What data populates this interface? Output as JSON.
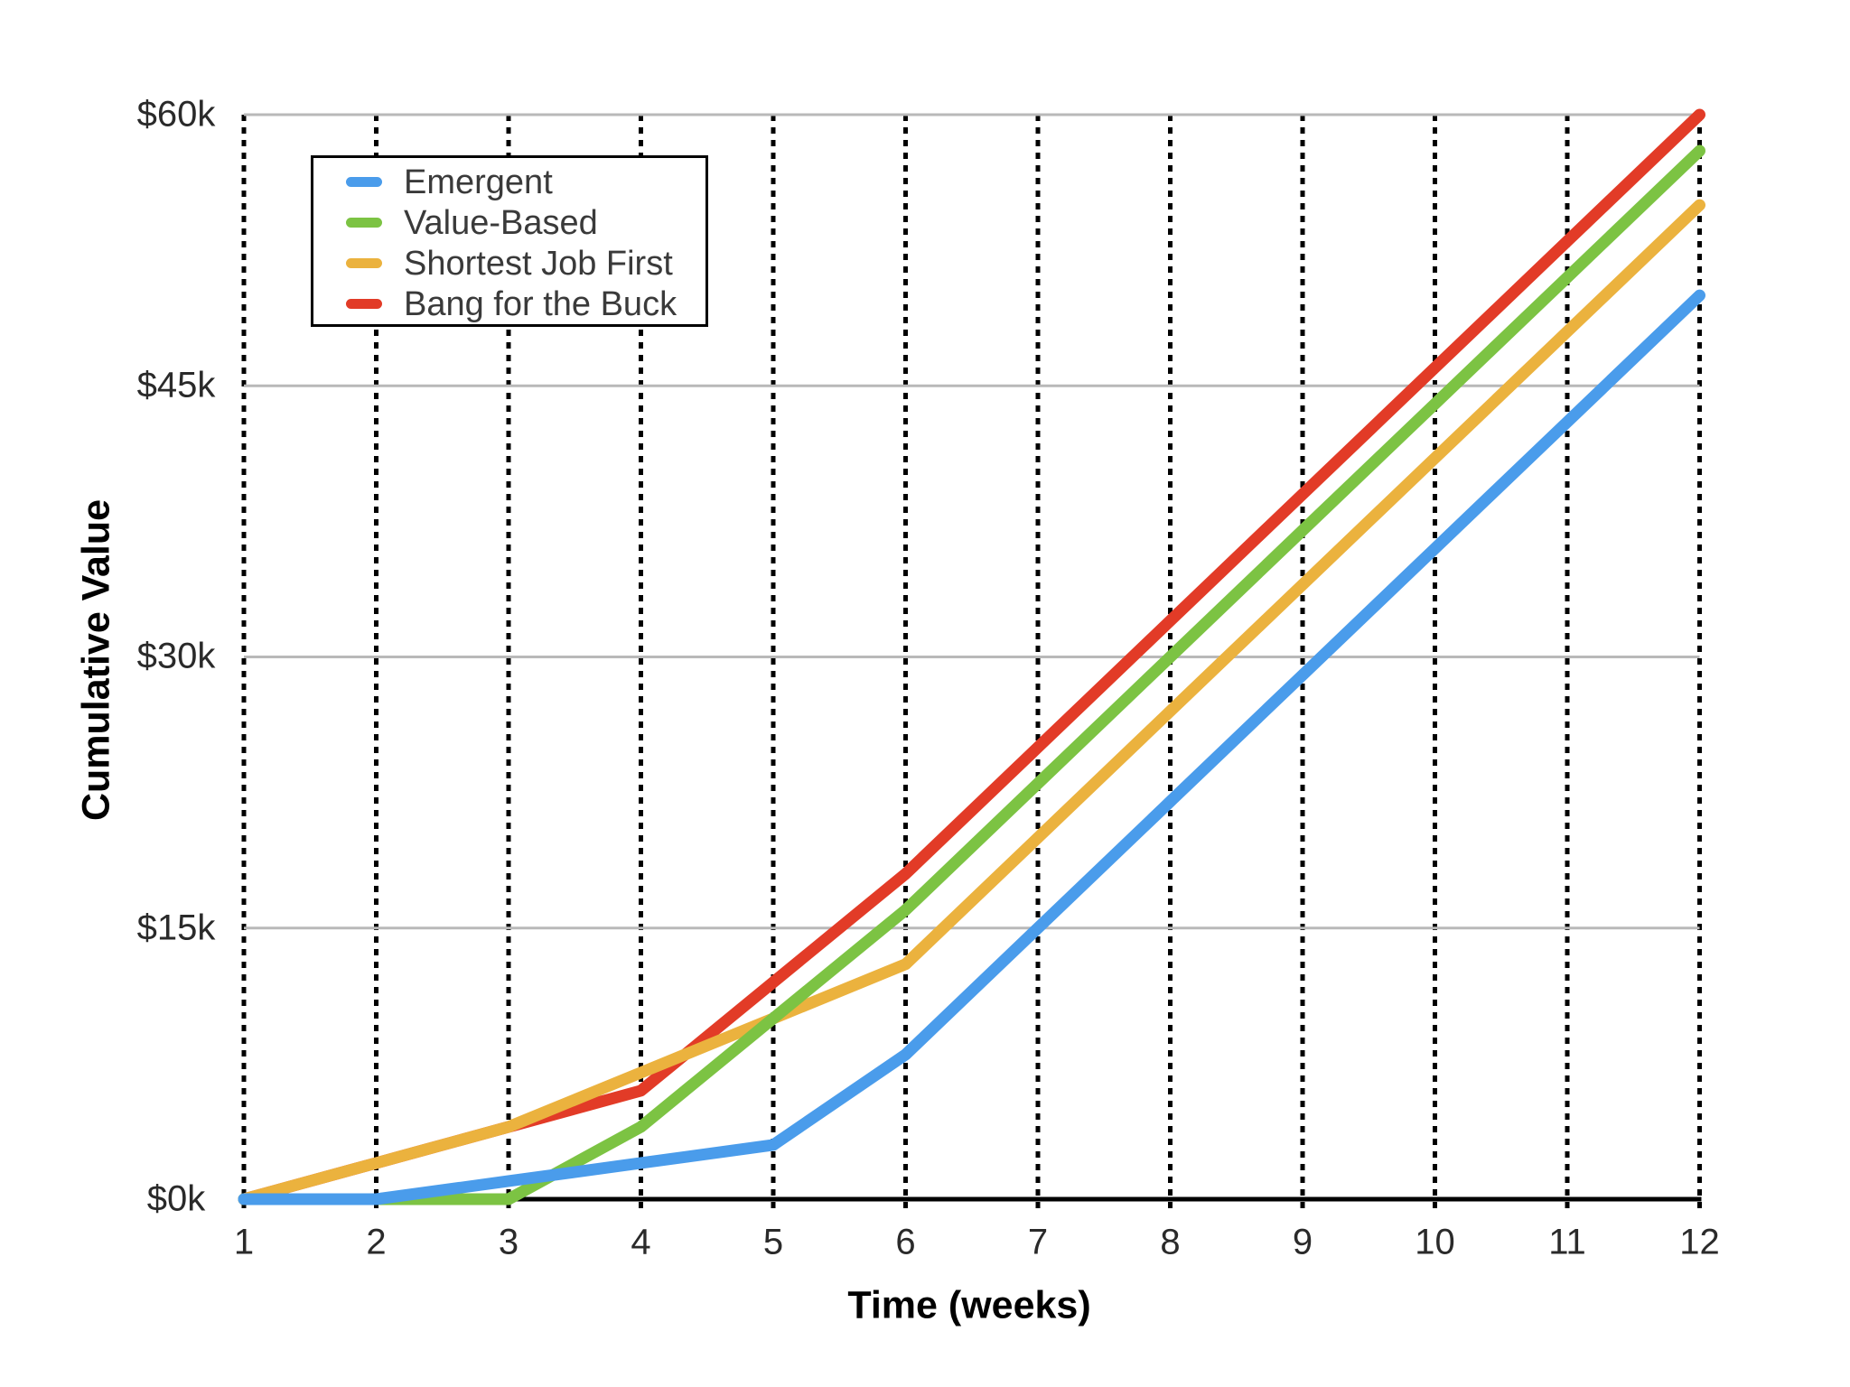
{
  "chart_data": {
    "type": "line",
    "title": "",
    "xlabel": "Time (weeks)",
    "ylabel": "Cumulative Value",
    "x": [
      1,
      2,
      3,
      4,
      5,
      6,
      7,
      8,
      9,
      10,
      11,
      12
    ],
    "x_tick_labels": [
      "1",
      "2",
      "3",
      "4",
      "5",
      "6",
      "7",
      "8",
      "9",
      "10",
      "11",
      "12"
    ],
    "xlim": [
      1,
      12
    ],
    "ylim": [
      0,
      60
    ],
    "y_ticks": [
      {
        "value": 0,
        "label": "$0k"
      },
      {
        "value": 15,
        "label": "$15k"
      },
      {
        "value": 30,
        "label": "$30k"
      },
      {
        "value": 45,
        "label": "$45k"
      },
      {
        "value": 60,
        "label": "$60k"
      }
    ],
    "value_unit": "$k",
    "grid": {
      "horizontal_solid": true,
      "vertical_dashed": true
    },
    "legend_position": "top-left",
    "series": [
      {
        "name": "Emergent",
        "color": "#4A9CEB",
        "values": [
          0,
          0,
          1,
          2,
          3,
          8,
          15,
          22,
          29,
          36,
          43,
          50
        ]
      },
      {
        "name": "Value-Based",
        "color": "#7CC343",
        "values": [
          0,
          0,
          0,
          4,
          10,
          16,
          23,
          30,
          37,
          44,
          51,
          58
        ]
      },
      {
        "name": "Shortest Job First",
        "color": "#EBB23E",
        "values": [
          0,
          2,
          4,
          7,
          10,
          13,
          20,
          27,
          34,
          41,
          48,
          55
        ]
      },
      {
        "name": "Bang for the Buck",
        "color": "#E23B27",
        "values": [
          0,
          2,
          4,
          6,
          12,
          18,
          25,
          32,
          39,
          46,
          53,
          60
        ]
      }
    ],
    "draw_order_bottom_to_top": [
      "Bang for the Buck",
      "Shortest Job First",
      "Value-Based",
      "Emergent"
    ]
  },
  "colors": {
    "background": "#ffffff",
    "gridline": "#b9b9b9",
    "axis": "#000000",
    "week_dashed_line": "#000000",
    "tick_label": "#2a2a2a",
    "axis_title": "#000000",
    "legend_text": "#3a3a3a",
    "legend_border": "#000000"
  }
}
